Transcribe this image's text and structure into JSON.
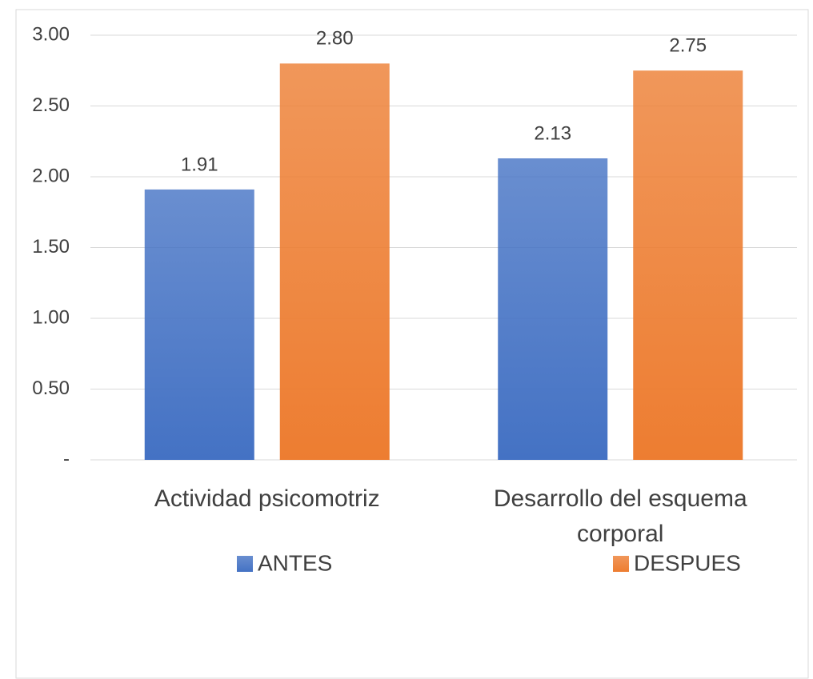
{
  "chart_data": {
    "type": "bar",
    "categories": [
      "Actividad psicomotriz",
      "Desarrollo del esquema corporal"
    ],
    "series": [
      {
        "name": "ANTES",
        "color": "#4472c4",
        "values": [
          1.91,
          2.13
        ],
        "value_labels": [
          "1.91",
          "2.13"
        ]
      },
      {
        "name": "DESPUES",
        "color": "#ed7d31",
        "values": [
          2.8,
          2.75
        ],
        "value_labels": [
          "2.80",
          "2.75"
        ]
      }
    ],
    "ylim": [
      0,
      3
    ],
    "yticks": [
      {
        "value": 0,
        "label": "-"
      },
      {
        "value": 0.5,
        "label": "0.50"
      },
      {
        "value": 1,
        "label": "1.00"
      },
      {
        "value": 1.5,
        "label": "1.50"
      },
      {
        "value": 2,
        "label": "2.00"
      },
      {
        "value": 2.5,
        "label": "2.50"
      },
      {
        "value": 3,
        "label": "3.00"
      }
    ],
    "grid": true,
    "legend": "bottom"
  }
}
